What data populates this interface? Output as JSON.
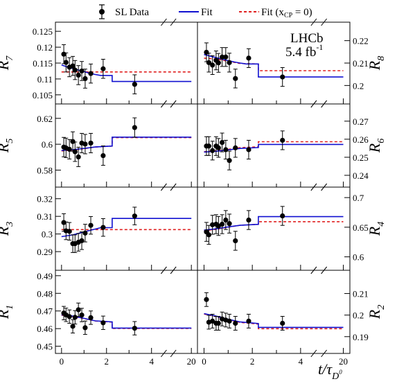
{
  "legend": {
    "data_label": "SL Data",
    "fit_label": "Fit",
    "fit_null_label": "Fit (x",
    "fit_null_sub": "CP",
    "fit_null_tail": " = 0)"
  },
  "experiment": {
    "name": "LHCb",
    "lumi_value": "5.4 fb",
    "lumi_exp": "-1"
  },
  "xaxis": {
    "label": "t/τ",
    "label_sub": "D",
    "label_sup": "0",
    "ticks": [
      "0",
      "2",
      "4",
      "20"
    ]
  },
  "colors": {
    "data": "#000000",
    "fit": "#1010d0",
    "fit_null": "#e02020"
  },
  "chart_data": [
    {
      "type": "scatter",
      "panel": "R7",
      "ylabel": "R",
      "ylabel_sub": "7",
      "ylim": [
        0.103,
        0.127
      ],
      "yticks": [
        0.105,
        0.11,
        0.115,
        0.12,
        0.125
      ],
      "ytick_labels": [
        "0.105",
        "0.11",
        "0.115",
        "0.12",
        "0.125"
      ],
      "points": [
        [
          0.1,
          0.1178
        ],
        [
          0.2,
          0.1152
        ],
        [
          0.35,
          0.1137
        ],
        [
          0.5,
          0.1141
        ],
        [
          0.6,
          0.1128
        ],
        [
          0.75,
          0.1112
        ],
        [
          0.9,
          0.1125
        ],
        [
          1.05,
          0.1101
        ],
        [
          1.3,
          0.1117
        ],
        [
          1.85,
          0.1132
        ],
        [
          3.25,
          0.1083
        ]
      ],
      "errors": [
        0.003,
        0.003,
        0.003,
        0.003,
        0.003,
        0.003,
        0.003,
        0.003,
        0.003,
        0.003,
        0.003
      ],
      "fit": [
        [
          0,
          0.1144
        ],
        [
          0.25,
          0.1138
        ],
        [
          0.5,
          0.1133
        ],
        [
          0.75,
          0.1128
        ],
        [
          1.0,
          0.1123
        ],
        [
          1.25,
          0.1118
        ],
        [
          1.5,
          0.1114
        ],
        [
          1.75,
          0.1111
        ],
        [
          2.25,
          0.1111
        ],
        [
          2.25,
          0.1092
        ],
        [
          20,
          0.1092
        ]
      ],
      "fit_null": [
        [
          0,
          0.1122
        ],
        [
          20,
          0.1122
        ]
      ]
    },
    {
      "type": "scatter",
      "panel": "R8",
      "ylabel": "R",
      "ylabel_sub": "8",
      "ylim": [
        0.193,
        0.227
      ],
      "yticks": [
        0.2,
        0.21,
        0.22
      ],
      "ytick_labels": [
        "0.2",
        "0.21",
        "0.22"
      ],
      "points": [
        [
          0.1,
          0.2148
        ],
        [
          0.2,
          0.2102
        ],
        [
          0.35,
          0.2091
        ],
        [
          0.5,
          0.2112
        ],
        [
          0.6,
          0.2101
        ],
        [
          0.75,
          0.2127
        ],
        [
          0.9,
          0.2127
        ],
        [
          1.05,
          0.2102
        ],
        [
          1.3,
          0.2031
        ],
        [
          1.85,
          0.2122
        ],
        [
          3.25,
          0.2038
        ]
      ],
      "errors": [
        0.0042,
        0.0042,
        0.0042,
        0.0042,
        0.0042,
        0.0042,
        0.0042,
        0.0042,
        0.0042,
        0.0042,
        0.0042
      ],
      "fit": [
        [
          0,
          0.2138
        ],
        [
          0.25,
          0.2131
        ],
        [
          0.5,
          0.2124
        ],
        [
          0.75,
          0.2117
        ],
        [
          1.0,
          0.2111
        ],
        [
          1.25,
          0.2105
        ],
        [
          1.5,
          0.21
        ],
        [
          1.75,
          0.2096
        ],
        [
          2.25,
          0.2096
        ],
        [
          2.25,
          0.2038
        ],
        [
          20,
          0.2038
        ]
      ],
      "fit_null": [
        [
          0,
          0.2122
        ],
        [
          0.5,
          0.2118
        ],
        [
          1.0,
          0.2108
        ],
        [
          1.5,
          0.2098
        ],
        [
          2.25,
          0.2096
        ],
        [
          2.25,
          0.2066
        ],
        [
          20,
          0.2066
        ]
      ]
    },
    {
      "type": "scatter",
      "panel": "R5",
      "ylabel": "R",
      "ylabel_sub": "5",
      "ylim": [
        0.569,
        0.629
      ],
      "yticks": [
        0.58,
        0.6,
        0.62
      ],
      "ytick_labels": [
        "0.58",
        "0.6",
        "0.62"
      ],
      "points": [
        [
          0.1,
          0.5978
        ],
        [
          0.2,
          0.5972
        ],
        [
          0.35,
          0.5961
        ],
        [
          0.5,
          0.6021
        ],
        [
          0.6,
          0.5942
        ],
        [
          0.75,
          0.5902
        ],
        [
          0.9,
          0.6009
        ],
        [
          1.05,
          0.6001
        ],
        [
          1.3,
          0.6009
        ],
        [
          1.85,
          0.5912
        ],
        [
          3.25,
          0.6129
        ]
      ],
      "errors": [
        0.0075,
        0.0075,
        0.0075,
        0.0075,
        0.0075,
        0.0075,
        0.0075,
        0.0075,
        0.0075,
        0.0075,
        0.0075
      ],
      "fit": [
        [
          0,
          0.5952
        ],
        [
          0.5,
          0.5958
        ],
        [
          1.0,
          0.5968
        ],
        [
          1.5,
          0.5979
        ],
        [
          2.25,
          0.5986
        ],
        [
          2.25,
          0.6055
        ],
        [
          20,
          0.6055
        ]
      ],
      "fit_null": [
        [
          0,
          0.5948
        ],
        [
          0.5,
          0.5955
        ],
        [
          1.0,
          0.5966
        ],
        [
          1.5,
          0.5978
        ],
        [
          2.25,
          0.5986
        ],
        [
          2.25,
          0.6051
        ],
        [
          20,
          0.6051
        ]
      ]
    },
    {
      "type": "scatter",
      "panel": "R6",
      "ylabel": "R",
      "ylabel_sub": "6",
      "ylim": [
        0.235,
        0.278
      ],
      "yticks": [
        0.24,
        0.25,
        0.26,
        0.27
      ],
      "ytick_labels": [
        "0.24",
        "0.25",
        "0.26",
        "0.27"
      ],
      "points": [
        [
          0.1,
          0.2562
        ],
        [
          0.2,
          0.2562
        ],
        [
          0.35,
          0.2537
        ],
        [
          0.5,
          0.2562
        ],
        [
          0.6,
          0.2552
        ],
        [
          0.75,
          0.2582
        ],
        [
          0.9,
          0.2542
        ],
        [
          1.05,
          0.2482
        ],
        [
          1.3,
          0.2552
        ],
        [
          1.85,
          0.2542
        ],
        [
          3.25,
          0.2594
        ]
      ],
      "errors": [
        0.0052,
        0.0052,
        0.0052,
        0.0052,
        0.0052,
        0.0052,
        0.0052,
        0.0052,
        0.0052,
        0.0052,
        0.0052
      ],
      "fit": [
        [
          0,
          0.2529
        ],
        [
          0.5,
          0.2533
        ],
        [
          1.0,
          0.2541
        ],
        [
          1.5,
          0.2549
        ],
        [
          2.25,
          0.2554
        ],
        [
          2.25,
          0.2571
        ],
        [
          20,
          0.2571
        ]
      ],
      "fit_null": [
        [
          0,
          0.2531
        ],
        [
          0.5,
          0.2536
        ],
        [
          1.0,
          0.2544
        ],
        [
          1.5,
          0.2553
        ],
        [
          2.25,
          0.2558
        ],
        [
          2.25,
          0.2586
        ],
        [
          20,
          0.2586
        ]
      ]
    },
    {
      "type": "scatter",
      "panel": "R3",
      "ylabel": "R",
      "ylabel_sub": "3",
      "ylim": [
        0.281,
        0.325
      ],
      "yticks": [
        0.29,
        0.3,
        0.31,
        0.32
      ],
      "ytick_labels": [
        "0.29",
        "0.3",
        "0.31",
        "0.32"
      ],
      "points": [
        [
          0.1,
          0.3065
        ],
        [
          0.2,
          0.3018
        ],
        [
          0.35,
          0.3015
        ],
        [
          0.5,
          0.2945
        ],
        [
          0.6,
          0.2945
        ],
        [
          0.75,
          0.2953
        ],
        [
          0.9,
          0.2962
        ],
        [
          1.05,
          0.3005
        ],
        [
          1.3,
          0.3049
        ],
        [
          1.85,
          0.3037
        ],
        [
          3.25,
          0.3102
        ]
      ],
      "errors": [
        0.005,
        0.005,
        0.005,
        0.005,
        0.005,
        0.005,
        0.005,
        0.005,
        0.005,
        0.005,
        0.005
      ],
      "fit": [
        [
          0,
          0.2985
        ],
        [
          0.5,
          0.2995
        ],
        [
          1.0,
          0.3012
        ],
        [
          1.5,
          0.3028
        ],
        [
          1.75,
          0.3036
        ],
        [
          2.25,
          0.3036
        ],
        [
          2.25,
          0.3088
        ],
        [
          20,
          0.3088
        ]
      ],
      "fit_null": [
        [
          0,
          0.3025
        ],
        [
          20,
          0.3025
        ]
      ]
    },
    {
      "type": "scatter",
      "panel": "R4",
      "ylabel": "R",
      "ylabel_sub": "4",
      "ylim": [
        0.582,
        0.713
      ],
      "yticks": [
        0.6,
        0.65,
        0.7
      ],
      "ytick_labels": [
        "0.6",
        "0.65",
        "0.7"
      ],
      "points": [
        [
          0.1,
          0.6421
        ],
        [
          0.2,
          0.6371
        ],
        [
          0.35,
          0.6541
        ],
        [
          0.5,
          0.6551
        ],
        [
          0.6,
          0.6521
        ],
        [
          0.75,
          0.6551
        ],
        [
          0.9,
          0.6621
        ],
        [
          1.05,
          0.6561
        ],
        [
          1.3,
          0.6271
        ],
        [
          1.85,
          0.6621
        ],
        [
          3.25,
          0.6691
        ]
      ],
      "errors": [
        0.016,
        0.016,
        0.016,
        0.016,
        0.016,
        0.016,
        0.016,
        0.016,
        0.016,
        0.016,
        0.016
      ],
      "fit": [
        [
          0,
          0.6451
        ],
        [
          0.5,
          0.6473
        ],
        [
          1.0,
          0.6505
        ],
        [
          1.5,
          0.6532
        ],
        [
          2.25,
          0.6549
        ],
        [
          2.25,
          0.6679
        ],
        [
          20,
          0.6679
        ]
      ],
      "fit_null": [
        [
          0,
          0.6441
        ],
        [
          0.5,
          0.6465
        ],
        [
          1.0,
          0.6501
        ],
        [
          1.5,
          0.6533
        ],
        [
          2.25,
          0.6549
        ],
        [
          2.25,
          0.6593
        ],
        [
          20,
          0.6593
        ]
      ]
    },
    {
      "type": "scatter",
      "panel": "R1",
      "ylabel": "R",
      "ylabel_sub": "1",
      "ylim": [
        0.4475,
        0.4915
      ],
      "yticks": [
        0.45,
        0.46,
        0.47,
        0.48,
        0.49
      ],
      "ytick_labels": [
        "0.45",
        "0.46",
        "0.47",
        "0.48",
        "0.49"
      ],
      "points": [
        [
          0.1,
          0.4688
        ],
        [
          0.2,
          0.4678
        ],
        [
          0.35,
          0.4668
        ],
        [
          0.5,
          0.4613
        ],
        [
          0.6,
          0.4664
        ],
        [
          0.75,
          0.4707
        ],
        [
          0.9,
          0.4677
        ],
        [
          1.05,
          0.4605
        ],
        [
          1.3,
          0.4662
        ],
        [
          1.85,
          0.4633
        ],
        [
          3.25,
          0.4602
        ]
      ],
      "errors": [
        0.0038,
        0.0038,
        0.0038,
        0.0038,
        0.0038,
        0.0038,
        0.0038,
        0.0038,
        0.0038,
        0.0038,
        0.0038
      ],
      "fit": [
        [
          0,
          0.4678
        ],
        [
          0.5,
          0.4671
        ],
        [
          1.0,
          0.4658
        ],
        [
          1.5,
          0.4644
        ],
        [
          2.25,
          0.4638
        ],
        [
          2.25,
          0.4603
        ],
        [
          20,
          0.4603
        ]
      ],
      "fit_null": [
        [
          0,
          0.4676
        ],
        [
          0.5,
          0.4669
        ],
        [
          1.0,
          0.4657
        ],
        [
          1.5,
          0.4643
        ],
        [
          2.25,
          0.4637
        ],
        [
          2.25,
          0.4601
        ],
        [
          20,
          0.4601
        ]
      ]
    },
    {
      "type": "scatter",
      "panel": "R2",
      "ylabel": "R",
      "ylabel_sub": "2",
      "ylim": [
        0.1835,
        0.2195
      ],
      "yticks": [
        0.19,
        0.2,
        0.21
      ],
      "ytick_labels": [
        "0.19",
        "0.2",
        "0.21"
      ],
      "points": [
        [
          0.1,
          0.2072
        ],
        [
          0.2,
          0.1967
        ],
        [
          0.35,
          0.1972
        ],
        [
          0.5,
          0.1962
        ],
        [
          0.6,
          0.1962
        ],
        [
          0.75,
          0.1982
        ],
        [
          0.9,
          0.1977
        ],
        [
          1.05,
          0.1972
        ],
        [
          1.3,
          0.1962
        ],
        [
          1.85,
          0.1972
        ],
        [
          3.25,
          0.1962
        ]
      ],
      "errors": [
        0.0032,
        0.0032,
        0.0032,
        0.0032,
        0.0032,
        0.0032,
        0.0032,
        0.0032,
        0.0032,
        0.0032,
        0.0032
      ],
      "fit": [
        [
          0,
          0.2007
        ],
        [
          0.5,
          0.1995
        ],
        [
          1.0,
          0.1981
        ],
        [
          1.5,
          0.1968
        ],
        [
          2.25,
          0.1961
        ],
        [
          2.25,
          0.1943
        ],
        [
          20,
          0.1943
        ]
      ],
      "fit_null": [
        [
          0,
          0.2005
        ],
        [
          0.5,
          0.1993
        ],
        [
          1.0,
          0.1979
        ],
        [
          1.5,
          0.1966
        ],
        [
          2.25,
          0.1958
        ],
        [
          2.25,
          0.1937
        ],
        [
          20,
          0.1937
        ]
      ]
    }
  ]
}
